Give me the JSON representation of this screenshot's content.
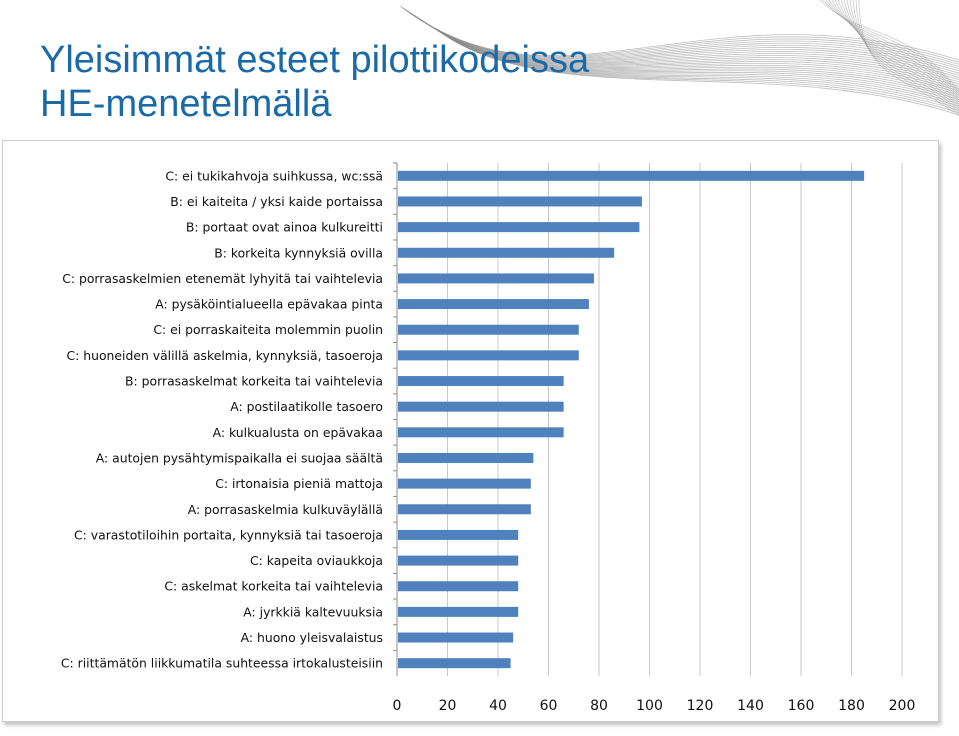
{
  "slide": {
    "title_line1": "Yleisimmät esteet pilottikodeissa",
    "title_line2": "HE-menetelmällä"
  },
  "colors": {
    "bar": "#4f81bd",
    "title": "#1a6aa8",
    "grid": "#c8c8c8"
  },
  "chart_data": {
    "type": "bar",
    "orientation": "horizontal",
    "categories": [
      "C: ei tukikahvoja suihkussa, wc:ssä",
      "B: ei kaiteita / yksi kaide portaissa",
      "B: portaat ovat ainoa kulkureitti",
      "B: korkeita kynnyksiä ovilla",
      "C: porrasaskelmien etenemät lyhyitä tai vaihtelevia",
      "A: pysäköintialueella epävakaa pinta",
      "C: ei porraskaiteita molemmin puolin",
      "C: huoneiden välillä askelmia, kynnyksiä, tasoeroja",
      "B: porrasaskelmat korkeita tai vaihtelevia",
      "A: postilaatikolle tasoero",
      "A: kulkualusta on epävakaa",
      "A: autojen pysähtymispaikalla ei suojaa säältä",
      "C: irtonaisia pieniä mattoja",
      "A: porrasaskelmia kulkuväylällä",
      "C: varastotiloihin portaita, kynnyksiä tai tasoeroja",
      "C: kapeita oviaukkoja",
      "C: askelmat korkeita tai vaihtelevia",
      "A: jyrkkiä kaltevuuksia",
      "A: huono yleisvalaistus",
      "C: riittämätön liikkumatila suhteessa irtokalusteisiin"
    ],
    "values": [
      185,
      97,
      96,
      86,
      78,
      76,
      72,
      72,
      66,
      66,
      66,
      54,
      53,
      53,
      48,
      48,
      48,
      48,
      46,
      45
    ],
    "xlim": [
      0,
      200
    ],
    "xticks": [
      "0",
      "20",
      "40",
      "60",
      "80",
      "100",
      "120",
      "140",
      "160",
      "180",
      "200"
    ],
    "grid": "vertical"
  }
}
